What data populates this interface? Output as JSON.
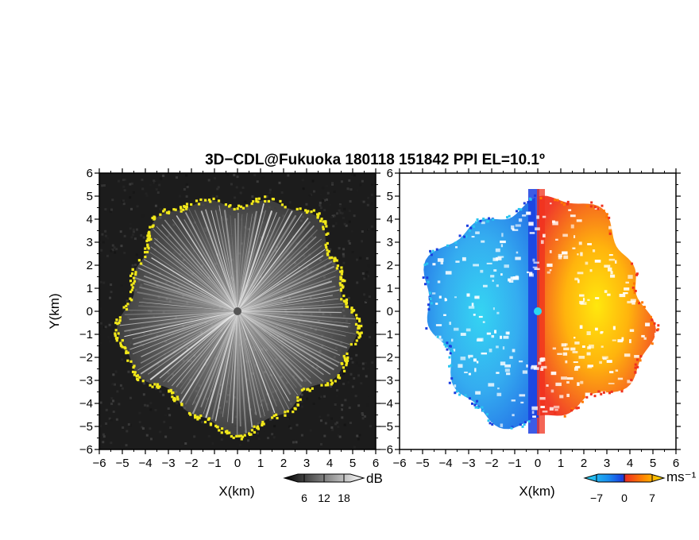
{
  "chart_data": [
    {
      "type": "heatmap",
      "panel": "reflectivity",
      "title": "3D−CDL@Fukuoka 180118 151842 PPI EL=10.1º",
      "xlabel": "X(km)",
      "ylabel": "Y(km)",
      "xlim": [
        -6,
        6
      ],
      "ylim": [
        -6,
        6
      ],
      "x_ticks": [
        "−6",
        "−5",
        "−4",
        "−3",
        "−2",
        "−1",
        "0",
        "1",
        "2",
        "3",
        "4",
        "5",
        "6"
      ],
      "y_ticks": [
        "6",
        "5",
        "4",
        "3",
        "2",
        "1",
        "0",
        "−1",
        "−2",
        "−3",
        "−4",
        "−5",
        "−6"
      ],
      "scan_radius_km": 5.3,
      "colorbar": {
        "unit": "dB",
        "ticks": [
          "6",
          "12",
          "18"
        ],
        "range": [
          0,
          24
        ],
        "colormap": "grayscale with yellow top"
      }
    },
    {
      "type": "heatmap",
      "panel": "doppler-velocity",
      "xlabel": "X(km)",
      "xlim": [
        -6,
        6
      ],
      "ylim": [
        -6,
        6
      ],
      "x_ticks": [
        "−6",
        "−5",
        "−4",
        "−3",
        "−2",
        "−1",
        "0",
        "1",
        "2",
        "3",
        "4",
        "5",
        "6"
      ],
      "y_ticks": [
        "6",
        "5",
        "4",
        "3",
        "2",
        "1",
        "0",
        "−1",
        "−2",
        "−3",
        "−4",
        "−5",
        "−6"
      ],
      "scan_radius_km": 5.3,
      "colorbar": {
        "unit": "ms⁻¹",
        "ticks": [
          "−7",
          "0",
          "7"
        ],
        "range": [
          -10,
          10
        ],
        "colormap": "cyan-blue-red-yellow"
      }
    }
  ],
  "colors": {
    "background_dark": "#1a1a1a",
    "edge_yellow": "#f2e81a",
    "approach_cyan": "#29c4f0",
    "approach_blue": "#1a3ee0",
    "recede_red": "#f0321e",
    "recede_yellow": "#ffea00"
  }
}
